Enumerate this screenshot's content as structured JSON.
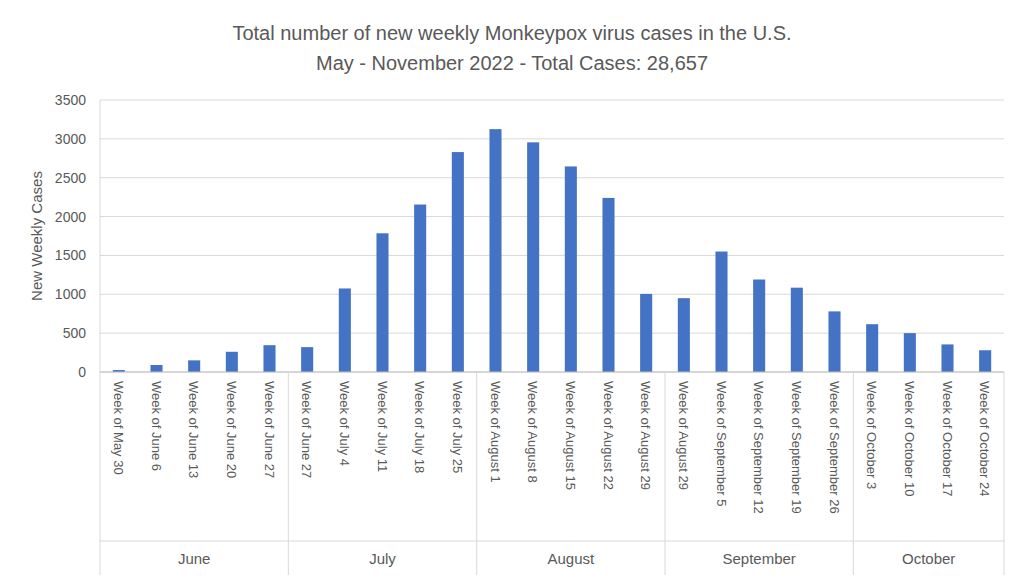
{
  "chart_data": {
    "type": "bar",
    "title": "Total number of new weekly Monkeypox virus cases in the U.S.",
    "subtitle": "May - November 2022 - Total Cases: 28,657",
    "y_label": "New Weekly Cases",
    "categories": [
      "Week of May 30",
      "Week of June 6",
      "Week of June 13",
      "Week of June 20",
      "Week of June 27",
      "Week of June 27",
      "Week of July 4",
      "Week of July 11",
      "Week of July 18",
      "Week of July 25",
      "Week of August 1",
      "Week of August 8",
      "Week of August 15",
      "Week of August 22",
      "Week of August 29",
      "Week of August 29",
      "Week of September 5",
      "Week of September 12",
      "Week of September 19",
      "Week of September 26",
      "Week of October 3",
      "Week of October 10",
      "Week of October 17",
      "Week of October 24"
    ],
    "groups": [
      "June",
      "June",
      "June",
      "June",
      "June",
      "July",
      "July",
      "July",
      "July",
      "July",
      "August",
      "August",
      "August",
      "August",
      "August",
      "September",
      "September",
      "September",
      "September",
      "September",
      "October",
      "October",
      "October",
      "October"
    ],
    "values": [
      25,
      90,
      150,
      260,
      345,
      320,
      1075,
      1785,
      2155,
      2830,
      3125,
      2955,
      2645,
      2240,
      1005,
      950,
      1550,
      1190,
      1085,
      780,
      615,
      500,
      355,
      280
    ],
    "color": "#4472c4",
    "ylim": [
      0,
      3500
    ],
    "yticks": [
      0,
      500,
      1000,
      1500,
      2000,
      2500,
      3000,
      3500
    ],
    "grid": true
  }
}
